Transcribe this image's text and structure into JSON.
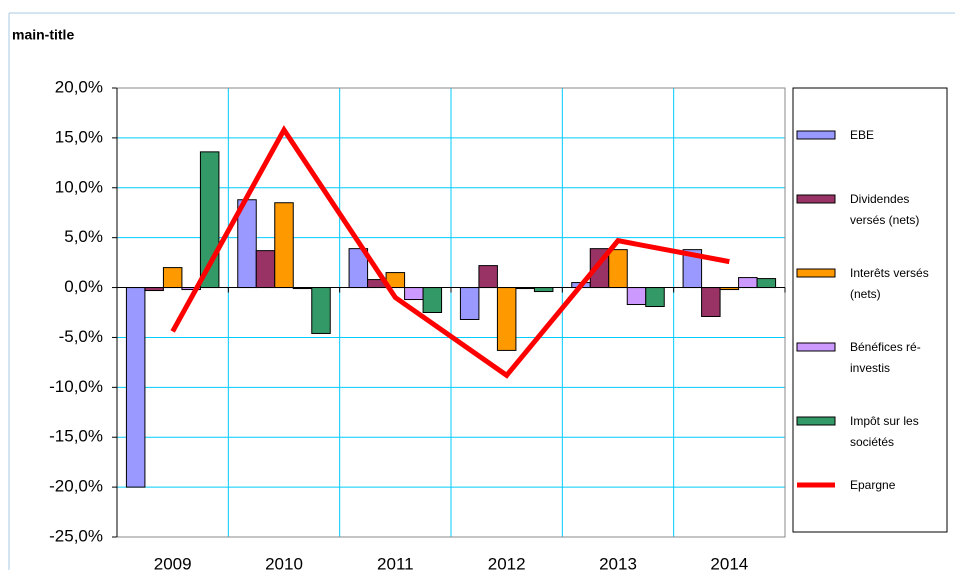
{
  "chart_data": {
    "type": "bar",
    "title": "main-title",
    "categories": [
      "2009",
      "2010",
      "2011",
      "2012",
      "2013",
      "2014"
    ],
    "series": [
      {
        "name": "EBE",
        "color": "#9999ff",
        "values": [
          -20.0,
          8.8,
          3.9,
          -3.2,
          0.5,
          3.8
        ]
      },
      {
        "name": "Dividendes versés (nets)",
        "color": "#993366",
        "values": [
          -0.3,
          3.7,
          0.8,
          2.2,
          3.9,
          -2.9
        ]
      },
      {
        "name": "Interêts versés (nets)",
        "color": "#ff9900",
        "values": [
          2.0,
          8.5,
          1.5,
          -6.3,
          3.8,
          -0.2
        ]
      },
      {
        "name": "Bénéfices ré-investis",
        "color": "#cc99ff",
        "values": [
          -0.2,
          -0.1,
          -1.2,
          -0.1,
          -1.7,
          1.0
        ]
      },
      {
        "name": "Impôt sur les sociétés",
        "color": "#339966",
        "values": [
          13.6,
          -4.6,
          -2.5,
          -0.4,
          -1.9,
          0.9
        ]
      },
      {
        "name": "Epargne",
        "color": "#ff0000",
        "type": "line",
        "values": [
          -4.4,
          15.8,
          -1.0,
          -8.8,
          4.7,
          2.6
        ]
      }
    ],
    "ylim": [
      -25,
      20
    ],
    "yticks": [
      {
        "value": -25,
        "label": "-25,0%"
      },
      {
        "value": -20,
        "label": "-20,0%"
      },
      {
        "value": -15,
        "label": "-15,0%"
      },
      {
        "value": -10,
        "label": "-10,0%"
      },
      {
        "value": -5,
        "label": "-5,0%"
      },
      {
        "value": 0,
        "label": "0,0%"
      },
      {
        "value": 5,
        "label": "5,0%"
      },
      {
        "value": 10,
        "label": "10,0%"
      },
      {
        "value": 15,
        "label": "15,0%"
      },
      {
        "value": 20,
        "label": "20,0%"
      }
    ],
    "grid": true,
    "legend": "right"
  }
}
